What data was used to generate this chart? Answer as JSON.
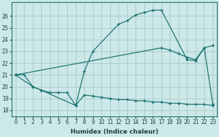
{
  "xlabel": "Humidex (Indice chaleur)",
  "background_color": "#cce8e8",
  "grid_color": "#aacccc",
  "line_color": "#1a7070",
  "ylim": [
    17.5,
    27.2
  ],
  "xlim": [
    -0.5,
    23.5
  ],
  "yticks": [
    18,
    19,
    20,
    21,
    22,
    23,
    24,
    25,
    26
  ],
  "xticks": [
    0,
    1,
    2,
    3,
    4,
    5,
    6,
    7,
    8,
    9,
    10,
    11,
    12,
    13,
    14,
    15,
    16,
    17,
    18,
    19,
    20,
    21,
    22,
    23
  ],
  "line1_x": [
    0,
    1,
    2,
    3,
    7,
    8,
    9,
    12,
    13,
    14,
    15,
    16,
    17,
    20,
    21,
    22,
    23
  ],
  "line1_y": [
    21.0,
    21.0,
    20.0,
    19.7,
    18.4,
    21.3,
    23.0,
    25.3,
    25.6,
    26.1,
    26.3,
    26.5,
    26.5,
    22.3,
    22.2,
    23.3,
    18.5
  ],
  "line2_x": [
    0,
    2,
    3,
    4,
    5,
    6,
    7,
    8,
    9,
    10,
    11,
    12,
    13,
    14,
    15,
    16,
    17,
    18,
    19,
    20,
    21,
    22,
    23
  ],
  "line2_y": [
    21.0,
    20.0,
    19.7,
    19.5,
    19.5,
    19.5,
    18.4,
    19.3,
    19.2,
    19.1,
    19.0,
    18.9,
    18.9,
    18.8,
    18.8,
    18.7,
    18.7,
    18.6,
    18.6,
    18.5,
    18.5,
    18.5,
    18.4
  ],
  "line3b_x": [
    0,
    17,
    18,
    19,
    20,
    21,
    22,
    23
  ],
  "line3b_y": [
    21.0,
    23.3,
    23.1,
    22.8,
    22.5,
    22.3,
    23.3,
    23.5
  ]
}
